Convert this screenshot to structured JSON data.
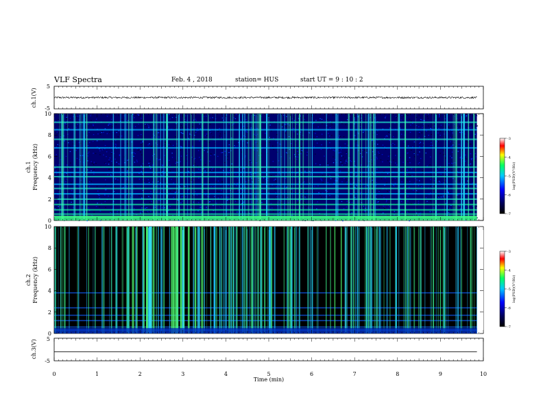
{
  "header": {
    "title": "VLF Spectra",
    "date": "Feb. 4 , 2018",
    "station": "station= HUS",
    "start": "start  UT =   9 : 10 : 2"
  },
  "chart_data": [
    {
      "type": "line",
      "panel": "ch1-waveform",
      "ylabel": "ch.1(V)",
      "ylim": [
        -5,
        5
      ],
      "yticks": [
        "5",
        "-5"
      ],
      "xlim": [
        0,
        10
      ],
      "baseline_level_V": 0,
      "series": [
        {
          "values_note_mean_V": 0,
          "amplitude_V": 0.4
        }
      ]
    },
    {
      "type": "heatmap",
      "panel": "ch1-spectrogram",
      "ylabel": "ch.1\nFrequency  (kHz)",
      "ylabel_line1": "ch.1",
      "ylabel_line2": "Frequency  (kHz)",
      "yticks": [
        "0",
        "2",
        "4",
        "6",
        "8",
        "10"
      ],
      "ylim": [
        0,
        10
      ],
      "xlim": [
        0,
        10
      ],
      "bright_bands_kHz": [
        0.3,
        0.6,
        1.0,
        1.5,
        2.0,
        2.5,
        3.0,
        3.4,
        4.1,
        4.5,
        5.0,
        6.8,
        7.6,
        8.5,
        9.2
      ],
      "colorbar": {
        "label": "log(PSD)(V²/Hz)",
        "ticks": [
          "-3",
          "-4",
          "-5",
          "-6",
          "-7"
        ],
        "range": [
          -7,
          -3
        ]
      }
    },
    {
      "type": "heatmap",
      "panel": "ch2-spectrogram",
      "ylabel_line1": "ch.2",
      "ylabel_line2": "Frequency  (kHz)",
      "yticks": [
        "0",
        "2",
        "4",
        "6",
        "8",
        "10"
      ],
      "ylim": [
        0,
        10
      ],
      "xlim": [
        0,
        10
      ],
      "bright_bands_kHz": [
        0.3,
        0.6,
        1.2,
        1.7,
        2.4,
        3.8
      ],
      "burst_clusters_min": [
        [
          1.8,
          2.3
        ],
        [
          2.7,
          3.5
        ],
        [
          6.5,
          6.8
        ]
      ],
      "colorbar": {
        "label": "log(PSD)(V²/Hz)",
        "ticks": [
          "-3",
          "-4",
          "-5",
          "-6",
          "-7"
        ],
        "range": [
          -7,
          -3
        ]
      }
    },
    {
      "type": "line",
      "panel": "ch3-waveform",
      "ylabel": "ch.3(V)",
      "ylim": [
        -5,
        5
      ],
      "yticks": [
        "5",
        "-5"
      ],
      "xlim": [
        0,
        10
      ],
      "series": [
        {
          "constant_V": -1
        }
      ]
    }
  ],
  "xaxis": {
    "label": "Time  (min)",
    "ticks": [
      "0",
      "1",
      "2",
      "3",
      "4",
      "5",
      "6",
      "7",
      "8",
      "9",
      "10"
    ],
    "range": [
      0,
      10
    ],
    "data_end_min": 9.85
  },
  "colors": {
    "colormap": [
      "#000000",
      "#00005a",
      "#0000ff",
      "#00c8ff",
      "#00ff64",
      "#ffff00",
      "#ff0000",
      "#ffffff"
    ]
  }
}
